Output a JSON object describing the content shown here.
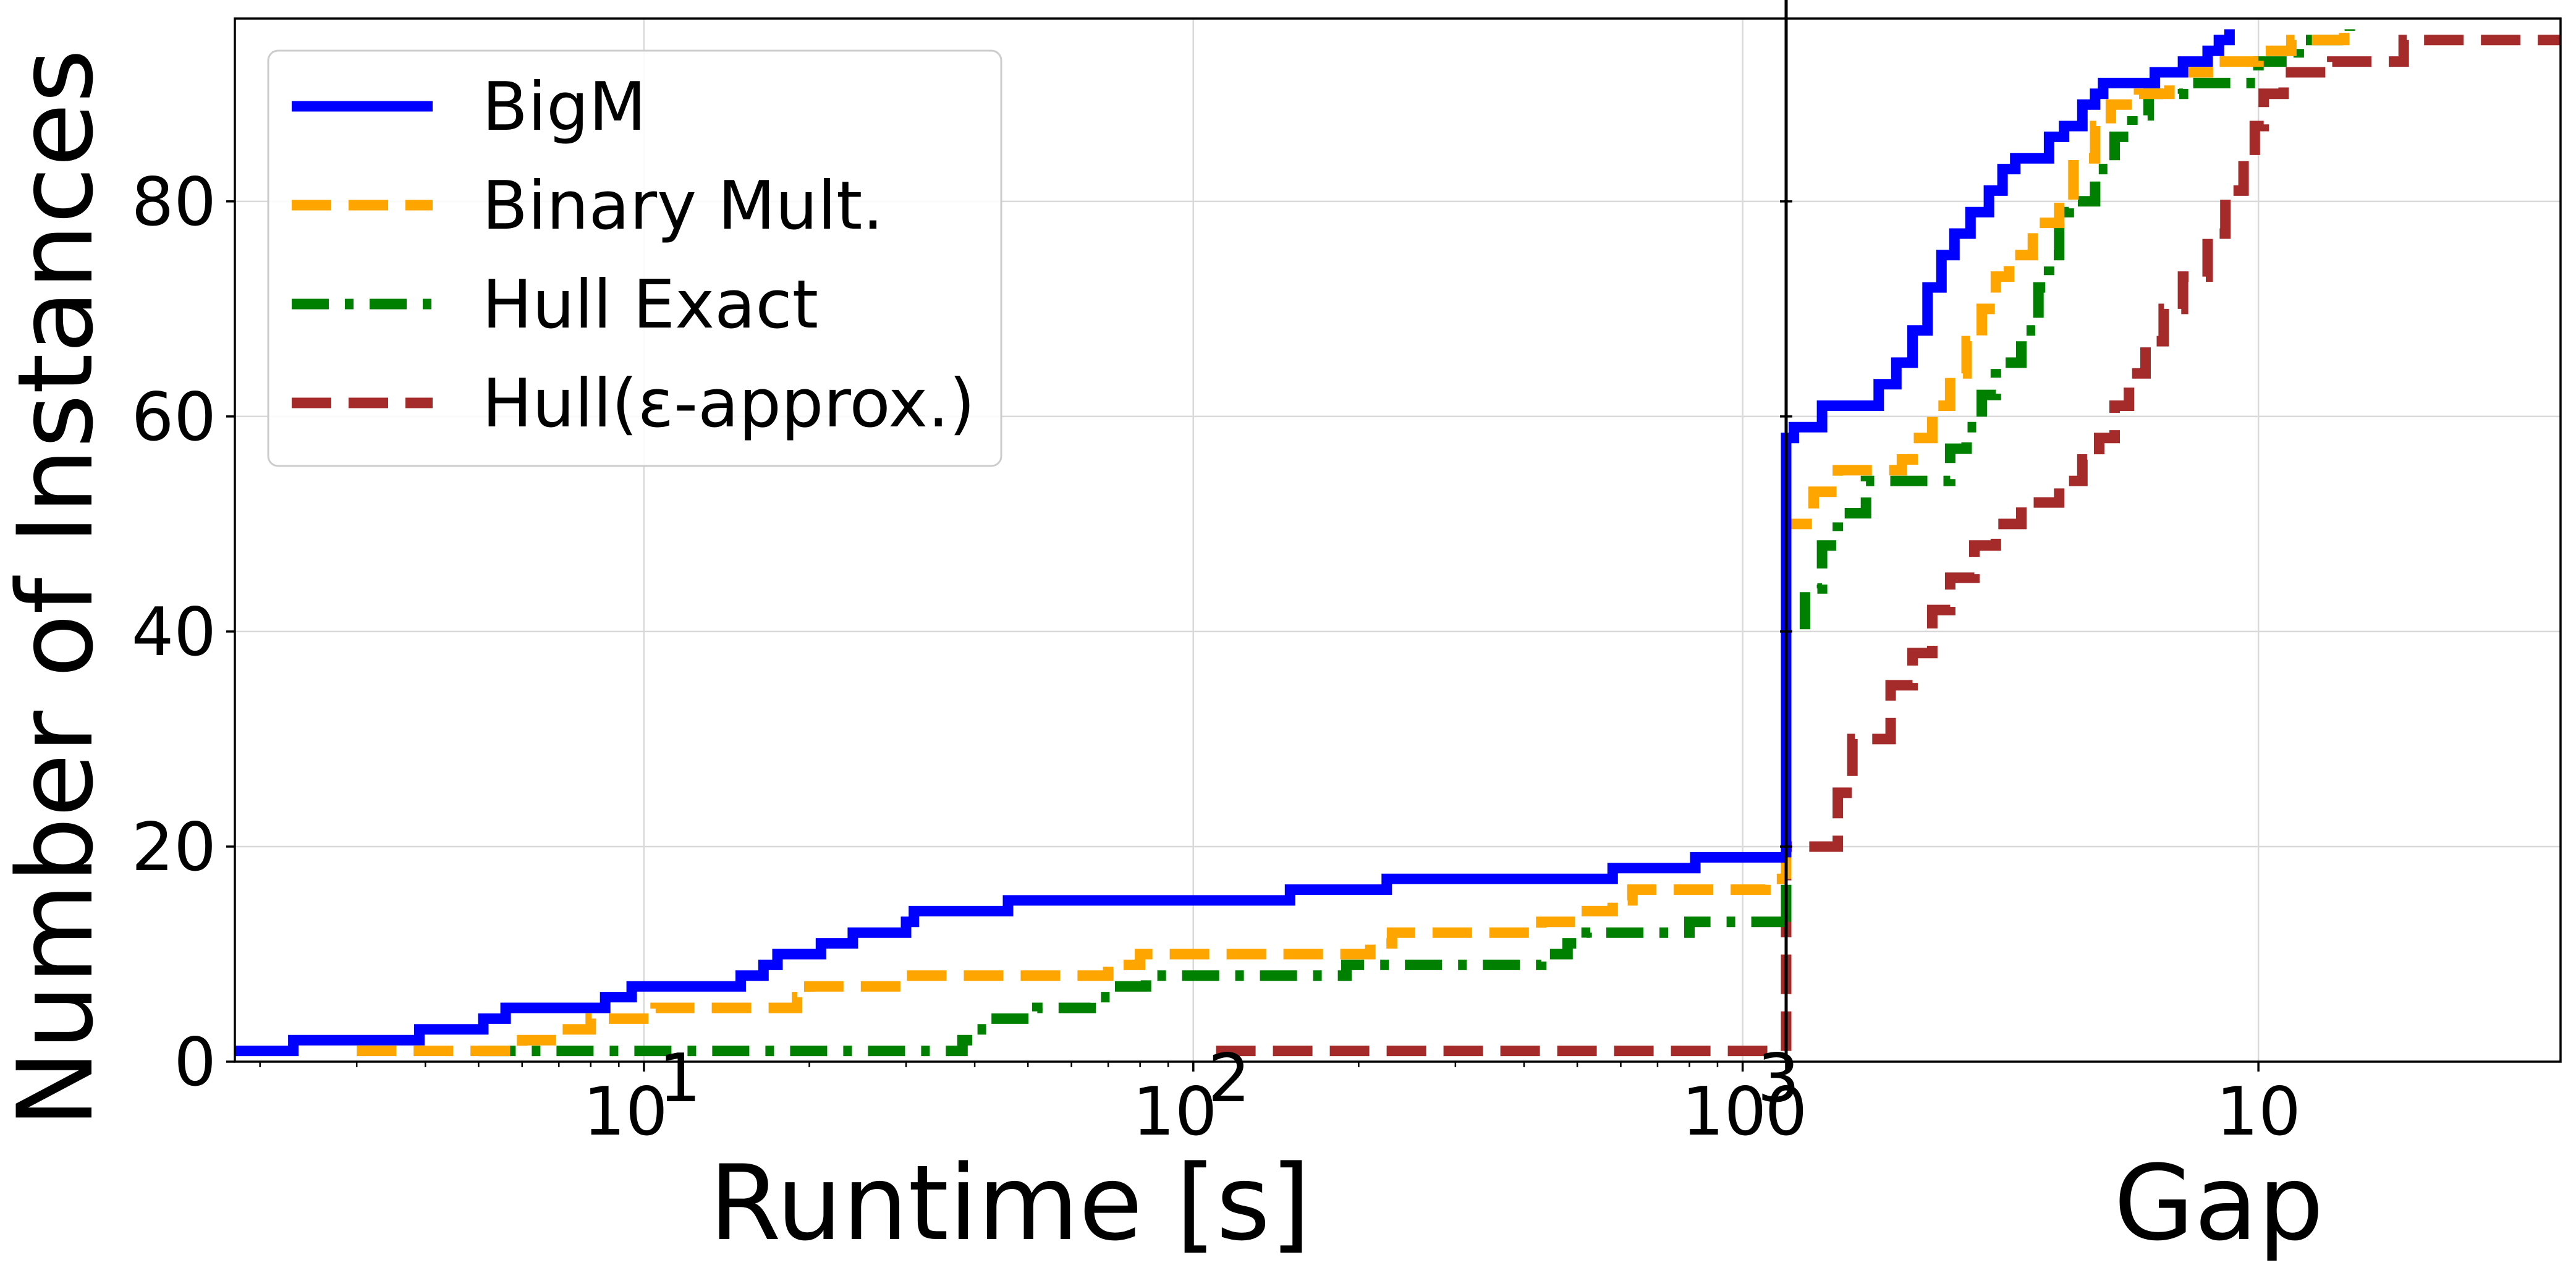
{
  "chart_data": {
    "type": "line",
    "ylabel": "Number of Instances",
    "ylim": [
      0,
      97
    ],
    "y_ticks": [
      0,
      20,
      40,
      60,
      80
    ],
    "grid": true,
    "legend_position": "top-left",
    "panels": [
      {
        "name": "runtime",
        "xlabel": "Runtime [s]",
        "x_scale": "log",
        "xlim": [
          1.8,
          1200
        ],
        "x_ticks": [
          {
            "value": 10,
            "base": "10",
            "exp": "1"
          },
          {
            "value": 100,
            "base": "10",
            "exp": "2"
          },
          {
            "value": 1000,
            "base": "10",
            "exp": "3"
          }
        ]
      },
      {
        "name": "gap",
        "xlabel": "Gap",
        "x_scale": "symlog",
        "xlim": [
          0,
          50
        ],
        "x_ticks": [
          {
            "value": 0,
            "label": "0"
          },
          {
            "value": 10,
            "label": "10"
          }
        ]
      }
    ],
    "series": [
      {
        "name": "BigM",
        "color": "#0000ff",
        "dash": "solid",
        "runtime_points": [
          [
            1.8,
            1
          ],
          [
            2.3,
            1
          ],
          [
            2.3,
            2
          ],
          [
            3.9,
            2
          ],
          [
            3.9,
            3
          ],
          [
            5.1,
            3
          ],
          [
            5.1,
            4
          ],
          [
            5.6,
            4
          ],
          [
            5.6,
            5
          ],
          [
            8.5,
            5
          ],
          [
            8.5,
            6
          ],
          [
            9.5,
            6
          ],
          [
            9.5,
            7
          ],
          [
            15,
            7
          ],
          [
            15,
            8
          ],
          [
            16.5,
            8
          ],
          [
            16.5,
            9
          ],
          [
            17.5,
            9
          ],
          [
            17.5,
            10
          ],
          [
            21,
            10
          ],
          [
            21,
            11
          ],
          [
            24,
            11
          ],
          [
            24,
            12
          ],
          [
            30,
            12
          ],
          [
            30,
            13
          ],
          [
            31,
            13
          ],
          [
            31,
            14
          ],
          [
            46,
            14
          ],
          [
            46,
            15
          ],
          [
            150,
            15
          ],
          [
            150,
            16
          ],
          [
            225,
            16
          ],
          [
            225,
            17
          ],
          [
            580,
            17
          ],
          [
            580,
            18
          ],
          [
            820,
            18
          ],
          [
            820,
            19
          ],
          [
            1200,
            19
          ]
        ],
        "gap_points": [
          [
            0,
            19
          ],
          [
            0,
            58
          ],
          [
            0.04,
            58
          ],
          [
            0.04,
            59
          ],
          [
            0.2,
            59
          ],
          [
            0.2,
            61
          ],
          [
            0.6,
            61
          ],
          [
            0.6,
            63
          ],
          [
            0.75,
            63
          ],
          [
            0.75,
            65
          ],
          [
            0.9,
            65
          ],
          [
            0.9,
            68
          ],
          [
            1.05,
            68
          ],
          [
            1.05,
            72
          ],
          [
            1.2,
            72
          ],
          [
            1.2,
            75
          ],
          [
            1.35,
            75
          ],
          [
            1.35,
            77
          ],
          [
            1.55,
            77
          ],
          [
            1.55,
            79
          ],
          [
            1.8,
            79
          ],
          [
            1.8,
            81
          ],
          [
            2.0,
            81
          ],
          [
            2.0,
            83
          ],
          [
            2.2,
            83
          ],
          [
            2.2,
            84
          ],
          [
            2.8,
            84
          ],
          [
            2.8,
            86
          ],
          [
            3.1,
            86
          ],
          [
            3.1,
            87
          ],
          [
            3.5,
            87
          ],
          [
            3.5,
            89
          ],
          [
            3.8,
            89
          ],
          [
            3.8,
            90
          ],
          [
            4.0,
            90
          ],
          [
            4.0,
            91
          ],
          [
            5.5,
            91
          ],
          [
            5.5,
            92
          ],
          [
            6.5,
            92
          ],
          [
            6.5,
            93
          ],
          [
            7.5,
            93
          ],
          [
            7.5,
            94
          ],
          [
            8.0,
            94
          ],
          [
            8.0,
            95
          ],
          [
            8.5,
            95
          ],
          [
            8.5,
            96
          ]
        ]
      },
      {
        "name": "Binary Mult.",
        "color": "#ffa500",
        "dash": "dashed",
        "runtime_points": [
          [
            3.0,
            1
          ],
          [
            6.0,
            1
          ],
          [
            6.0,
            2
          ],
          [
            7.0,
            2
          ],
          [
            7.0,
            3
          ],
          [
            8.0,
            3
          ],
          [
            8.0,
            4
          ],
          [
            10.5,
            4
          ],
          [
            10.5,
            5
          ],
          [
            19,
            5
          ],
          [
            19,
            6
          ],
          [
            20,
            6
          ],
          [
            20,
            7
          ],
          [
            30,
            7
          ],
          [
            30,
            8
          ],
          [
            70,
            8
          ],
          [
            70,
            9
          ],
          [
            80,
            9
          ],
          [
            80,
            10
          ],
          [
            210,
            10
          ],
          [
            210,
            11
          ],
          [
            230,
            11
          ],
          [
            230,
            12
          ],
          [
            430,
            12
          ],
          [
            430,
            13
          ],
          [
            500,
            13
          ],
          [
            500,
            14
          ],
          [
            580,
            14
          ],
          [
            580,
            15
          ],
          [
            630,
            15
          ],
          [
            630,
            16
          ],
          [
            1100,
            16
          ],
          [
            1100,
            17
          ],
          [
            1200,
            17
          ]
        ],
        "gap_points": [
          [
            0,
            17
          ],
          [
            0,
            50
          ],
          [
            0.15,
            50
          ],
          [
            0.15,
            53
          ],
          [
            0.3,
            53
          ],
          [
            0.3,
            55
          ],
          [
            0.8,
            55
          ],
          [
            0.8,
            56
          ],
          [
            0.9,
            56
          ],
          [
            0.9,
            58
          ],
          [
            1.1,
            58
          ],
          [
            1.1,
            61
          ],
          [
            1.3,
            61
          ],
          [
            1.3,
            64
          ],
          [
            1.5,
            64
          ],
          [
            1.5,
            67
          ],
          [
            1.7,
            67
          ],
          [
            1.7,
            70
          ],
          [
            1.9,
            70
          ],
          [
            1.9,
            73
          ],
          [
            2.1,
            73
          ],
          [
            2.1,
            75
          ],
          [
            2.5,
            75
          ],
          [
            2.5,
            78
          ],
          [
            3.0,
            78
          ],
          [
            3.0,
            80
          ],
          [
            3.3,
            80
          ],
          [
            3.3,
            84
          ],
          [
            3.8,
            84
          ],
          [
            3.8,
            87
          ],
          [
            4.2,
            87
          ],
          [
            4.2,
            89
          ],
          [
            5.0,
            89
          ],
          [
            5.0,
            90
          ],
          [
            6.0,
            90
          ],
          [
            6.0,
            92
          ],
          [
            8.0,
            92
          ],
          [
            8.0,
            93
          ],
          [
            10.0,
            93
          ],
          [
            10.0,
            94
          ],
          [
            12.0,
            94
          ],
          [
            12.0,
            95
          ],
          [
            16.0,
            95
          ],
          [
            16.0,
            96
          ]
        ]
      },
      {
        "name": "Hull Exact",
        "color": "#008000",
        "dash": "dashdot",
        "runtime_points": [
          [
            5.0,
            1
          ],
          [
            38,
            1
          ],
          [
            38,
            2
          ],
          [
            40,
            2
          ],
          [
            40,
            3
          ],
          [
            42,
            3
          ],
          [
            42,
            4
          ],
          [
            52,
            4
          ],
          [
            52,
            5
          ],
          [
            65,
            5
          ],
          [
            65,
            6
          ],
          [
            72,
            6
          ],
          [
            72,
            7
          ],
          [
            82,
            7
          ],
          [
            82,
            8
          ],
          [
            190,
            8
          ],
          [
            190,
            9
          ],
          [
            430,
            9
          ],
          [
            430,
            10
          ],
          [
            480,
            10
          ],
          [
            480,
            11
          ],
          [
            520,
            11
          ],
          [
            520,
            12
          ],
          [
            800,
            12
          ],
          [
            800,
            13
          ],
          [
            1200,
            13
          ]
        ],
        "gap_points": [
          [
            0,
            13
          ],
          [
            0,
            40
          ],
          [
            0.1,
            40
          ],
          [
            0.1,
            44
          ],
          [
            0.2,
            44
          ],
          [
            0.2,
            48
          ],
          [
            0.3,
            48
          ],
          [
            0.3,
            51
          ],
          [
            0.5,
            51
          ],
          [
            0.5,
            54
          ],
          [
            1.3,
            54
          ],
          [
            1.3,
            57
          ],
          [
            1.5,
            57
          ],
          [
            1.5,
            59
          ],
          [
            1.7,
            59
          ],
          [
            1.7,
            62
          ],
          [
            1.9,
            62
          ],
          [
            1.9,
            65
          ],
          [
            2.3,
            65
          ],
          [
            2.3,
            68
          ],
          [
            2.6,
            68
          ],
          [
            2.6,
            72
          ],
          [
            2.8,
            72
          ],
          [
            2.8,
            75
          ],
          [
            3.0,
            75
          ],
          [
            3.0,
            79
          ],
          [
            3.2,
            79
          ],
          [
            3.2,
            80
          ],
          [
            3.8,
            80
          ],
          [
            3.8,
            83
          ],
          [
            4.3,
            83
          ],
          [
            4.3,
            86
          ],
          [
            4.8,
            86
          ],
          [
            4.8,
            88
          ],
          [
            5.3,
            88
          ],
          [
            5.3,
            90
          ],
          [
            6.5,
            90
          ],
          [
            6.5,
            91
          ],
          [
            10.0,
            91
          ],
          [
            10.0,
            93
          ],
          [
            12.5,
            93
          ],
          [
            12.5,
            95
          ],
          [
            16.5,
            95
          ],
          [
            16.5,
            96
          ]
        ]
      },
      {
        "name": "Hull(ε-approx.)",
        "color": "#a52a2a",
        "dash": "dashed",
        "runtime_points": [
          [
            110,
            1
          ],
          [
            1200,
            1
          ]
        ],
        "gap_points": [
          [
            0,
            1
          ],
          [
            0,
            20
          ],
          [
            0.3,
            20
          ],
          [
            0.3,
            25
          ],
          [
            0.4,
            25
          ],
          [
            0.4,
            30
          ],
          [
            0.7,
            30
          ],
          [
            0.7,
            35
          ],
          [
            0.9,
            35
          ],
          [
            0.9,
            38
          ],
          [
            1.1,
            38
          ],
          [
            1.1,
            42
          ],
          [
            1.3,
            42
          ],
          [
            1.3,
            45
          ],
          [
            1.6,
            45
          ],
          [
            1.6,
            48
          ],
          [
            1.9,
            48
          ],
          [
            1.9,
            50
          ],
          [
            2.3,
            50
          ],
          [
            2.3,
            52
          ],
          [
            3.0,
            52
          ],
          [
            3.0,
            54
          ],
          [
            3.5,
            54
          ],
          [
            3.5,
            56
          ],
          [
            3.9,
            56
          ],
          [
            3.9,
            58
          ],
          [
            4.3,
            58
          ],
          [
            4.3,
            61
          ],
          [
            4.7,
            61
          ],
          [
            4.7,
            64
          ],
          [
            5.2,
            64
          ],
          [
            5.2,
            67
          ],
          [
            5.8,
            67
          ],
          [
            5.8,
            70
          ],
          [
            6.5,
            70
          ],
          [
            6.5,
            73
          ],
          [
            7.5,
            73
          ],
          [
            7.5,
            77
          ],
          [
            8.3,
            77
          ],
          [
            8.3,
            81
          ],
          [
            9.2,
            81
          ],
          [
            9.2,
            84
          ],
          [
            9.8,
            84
          ],
          [
            9.8,
            87
          ],
          [
            10.3,
            87
          ],
          [
            10.3,
            90
          ],
          [
            11.5,
            90
          ],
          [
            11.5,
            92
          ],
          [
            15.0,
            92
          ],
          [
            15.0,
            93
          ],
          [
            22.0,
            93
          ],
          [
            22.0,
            95
          ],
          [
            50.0,
            95
          ]
        ]
      }
    ]
  }
}
